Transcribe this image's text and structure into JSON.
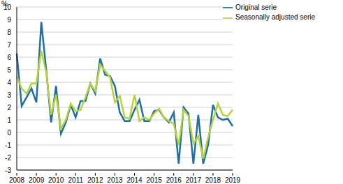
{
  "chart_data": {
    "type": "line",
    "y_label": "%",
    "categories": [
      "2008",
      null,
      null,
      null,
      "2009",
      null,
      null,
      null,
      "2010",
      null,
      null,
      null,
      "2011",
      null,
      null,
      null,
      "2012",
      null,
      null,
      null,
      "2013",
      null,
      null,
      null,
      "2014",
      null,
      null,
      null,
      "2015",
      null,
      null,
      null,
      "2016",
      null,
      null,
      null,
      "2017",
      null,
      null,
      null,
      "2018",
      null,
      null,
      null,
      "2019"
    ],
    "series": [
      {
        "name": "Original serie",
        "color": "#1d6fa5",
        "values": [
          6.3,
          2.1,
          2.8,
          3.5,
          2.4,
          8.8,
          5.0,
          0.8,
          3.7,
          -0.1,
          0.8,
          2.2,
          1.2,
          2.5,
          2.5,
          3.9,
          3.1,
          5.9,
          4.6,
          4.5,
          3.7,
          1.6,
          0.9,
          0.9,
          1.8,
          2.6,
          0.9,
          0.9,
          1.7,
          1.8,
          1.2,
          0.8,
          1.6,
          -2.5,
          2.0,
          1.5,
          -2.5,
          1.4,
          -2.5,
          -1.0,
          2.2,
          1.2,
          1.0,
          1.1,
          0.5
        ]
      },
      {
        "name": "Seasonally adjusted serie",
        "color": "#b6d43a",
        "values": [
          4.5,
          3.5,
          3.1,
          3.9,
          3.9,
          6.5,
          4.8,
          1.4,
          3.0,
          0.3,
          1.0,
          2.3,
          1.7,
          1.8,
          2.8,
          3.9,
          3.3,
          5.4,
          4.9,
          4.4,
          2.4,
          2.9,
          1.2,
          1.1,
          3.0,
          0.9,
          1.2,
          1.0,
          1.5,
          1.9,
          1.2,
          0.9,
          0.7,
          -1.0,
          1.8,
          1.3,
          -0.9,
          -0.3,
          -2.1,
          -0.4,
          1.0,
          2.3,
          1.4,
          1.3,
          1.8
        ]
      }
    ],
    "ylim": [
      -3,
      10
    ],
    "yticks": [
      -3,
      -2,
      -1,
      0,
      1,
      2,
      3,
      4,
      5,
      6,
      7,
      8,
      9,
      10
    ],
    "grid": true,
    "legend": "upper right"
  }
}
